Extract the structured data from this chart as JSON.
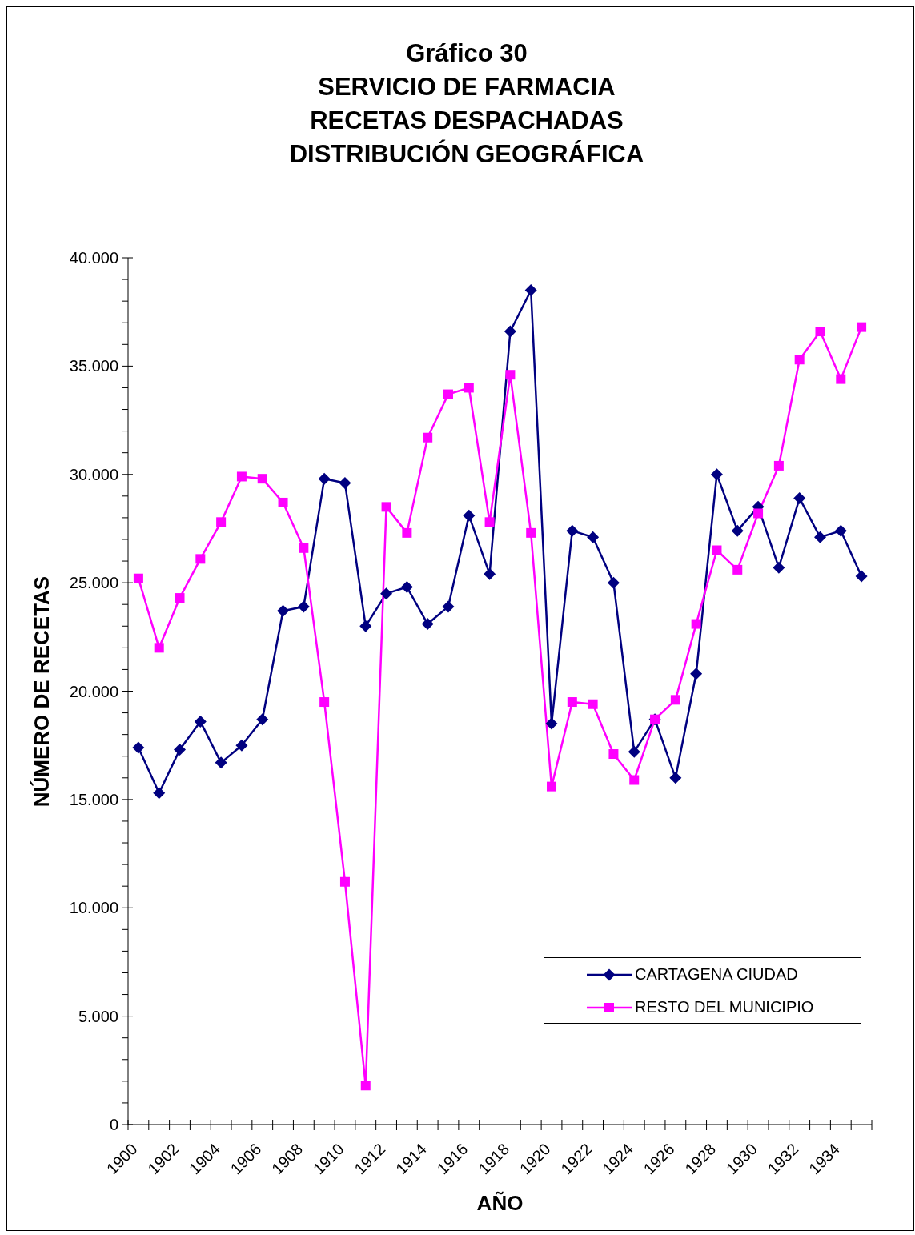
{
  "chart_data": {
    "type": "line",
    "title": "Gráfico 30\nSERVICIO DE FARMACIA\nRECETAS DESPACHADAS\nDISTRIBUCIÓN GEOGRÁFICA",
    "xlabel": "AÑO",
    "ylabel": "NÚMERO DE RECETAS",
    "categories": [
      "1900",
      null,
      "1902",
      null,
      "1904",
      null,
      "1906",
      null,
      "1908",
      null,
      "1910",
      null,
      "1912",
      null,
      "1914",
      null,
      "1916",
      null,
      "1918",
      null,
      "1920",
      null,
      "1922",
      null,
      "1924",
      null,
      "1926",
      null,
      "1928",
      null,
      "1930",
      null,
      "1932",
      null,
      "1934",
      null
    ],
    "series": [
      {
        "name": "CARTAGENA CIUDAD",
        "color": "#000080",
        "marker": "diamond",
        "values": [
          17400,
          15300,
          17300,
          18600,
          16700,
          17500,
          18700,
          23700,
          23900,
          29800,
          29600,
          23000,
          24500,
          24800,
          23100,
          23900,
          28100,
          25400,
          36600,
          38500,
          18500,
          27400,
          27100,
          25000,
          17200,
          18700,
          16000,
          20800,
          30000,
          27400,
          28500,
          25700,
          28900,
          27100,
          27400,
          25300
        ]
      },
      {
        "name": "RESTO DEL MUNICIPIO",
        "color": "#ff00ff",
        "marker": "square",
        "values": [
          25200,
          22000,
          24300,
          26100,
          27800,
          29900,
          29800,
          28700,
          26600,
          19500,
          11200,
          1800,
          28500,
          27300,
          31700,
          33700,
          34000,
          27800,
          34600,
          27300,
          15600,
          19500,
          19400,
          17100,
          15900,
          18700,
          19600,
          23100,
          26500,
          25600,
          28200,
          30400,
          35300,
          36600,
          34400,
          36800
        ]
      }
    ],
    "ylim": [
      0,
      40000
    ],
    "yticks": [
      0,
      {
        "value": 1000,
        "label": null
      },
      {
        "value": 2000,
        "label": null
      },
      {
        "value": 3000,
        "label": null
      },
      {
        "value": 4000,
        "label": null
      },
      {
        "value": 5000,
        "label": "5.000"
      },
      {
        "value": 6000,
        "label": null
      },
      {
        "value": 7000,
        "label": null
      },
      {
        "value": 8000,
        "label": null
      },
      {
        "value": 9000,
        "label": null
      },
      {
        "value": 10000,
        "label": "10.000"
      },
      {
        "value": 11000,
        "label": null
      },
      {
        "value": 12000,
        "label": null
      },
      {
        "value": 13000,
        "label": null
      },
      {
        "value": 14000,
        "label": null
      },
      {
        "value": 15000,
        "label": "15.000"
      },
      {
        "value": 16000,
        "label": null
      },
      {
        "value": 17000,
        "label": null
      },
      {
        "value": 18000,
        "label": null
      },
      {
        "value": 19000,
        "label": null
      },
      {
        "value": 20000,
        "label": "20.000"
      },
      {
        "value": 21000,
        "label": null
      },
      {
        "value": 22000,
        "label": null
      },
      {
        "value": 23000,
        "label": null
      },
      {
        "value": 24000,
        "label": null
      },
      {
        "value": 25000,
        "label": "25.000"
      },
      {
        "value": 26000,
        "label": null
      },
      {
        "value": 27000,
        "label": null
      },
      {
        "value": 28000,
        "label": null
      },
      {
        "value": 29000,
        "label": null
      },
      {
        "value": 30000,
        "label": "30.000"
      },
      {
        "value": 31000,
        "label": null
      },
      {
        "value": 32000,
        "label": null
      },
      {
        "value": 33000,
        "label": null
      },
      {
        "value": 34000,
        "label": null
      },
      {
        "value": 35000,
        "label": "35.000"
      },
      {
        "value": 36000,
        "label": null
      },
      {
        "value": 37000,
        "label": null
      },
      {
        "value": 38000,
        "label": null
      },
      {
        "value": 39000,
        "label": null
      },
      {
        "value": 40000,
        "label": "40.000"
      }
    ],
    "legend": "bottom right"
  }
}
